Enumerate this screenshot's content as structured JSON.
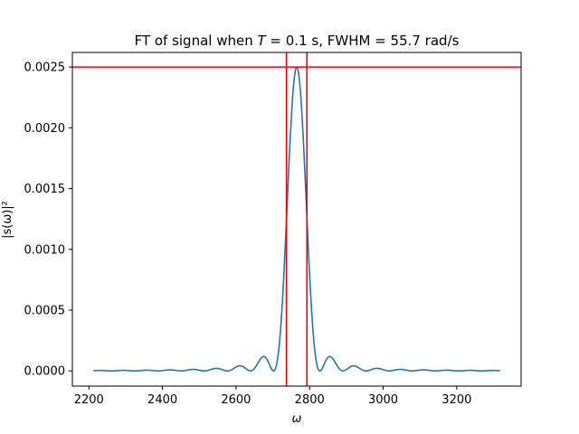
{
  "chart_data": {
    "type": "line",
    "title": "FT of signal when T = 0.1 s, FWHM = 55.7 rad/s",
    "title_parts": {
      "prefix": "FT of signal when ",
      "var": "T",
      "suffix": " = 0.1 s, FWHM = 55.7 rad/s"
    },
    "xlabel": "ω",
    "ylabel": "|s(ω)|²",
    "xlim": [
      2155,
      3375
    ],
    "ylim": [
      -0.000125,
      0.00262
    ],
    "xticks": [
      2200,
      2400,
      2600,
      2800,
      3000,
      3200
    ],
    "xtick_labels": [
      "2200",
      "2400",
      "2600",
      "2800",
      "3000",
      "3200"
    ],
    "yticks": [
      0.0,
      0.0005,
      0.001,
      0.0015,
      0.002,
      0.0025
    ],
    "ytick_labels": [
      "0.0000",
      "0.0005",
      "0.0010",
      "0.0015",
      "0.0020",
      "0.0025"
    ],
    "grid": false,
    "legend": "none",
    "series": [
      {
        "color": "#1f77b4",
        "model": "sinc-squared",
        "center": 2765,
        "peak": 0.0025,
        "fwhm": 55.7,
        "x_range": [
          2212,
          3318
        ]
      }
    ],
    "reference_lines": {
      "color": "#ff0000",
      "hlines": [
        0.0025
      ],
      "vlines": [
        2737,
        2792.7
      ]
    }
  }
}
